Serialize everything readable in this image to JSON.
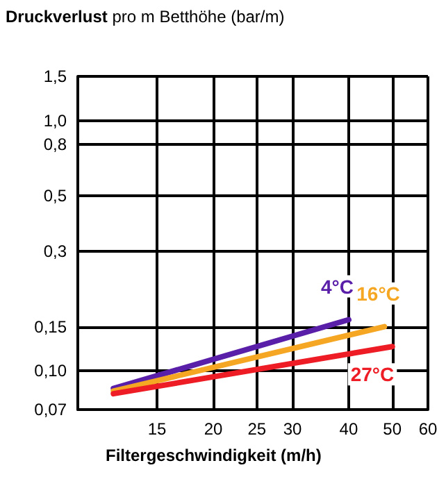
{
  "chart_data": {
    "type": "line",
    "ylabel": "Druckverlust pro m Betthöhe (bar/m)",
    "xlabel": "Filtergeschwindigkeit (m/h)",
    "log": "xy",
    "grid": true,
    "legend": false,
    "marker": "none",
    "line_style": "solid",
    "xlim": [
      10,
      60
    ],
    "xticks": [
      15,
      20,
      25,
      30,
      40,
      50,
      60
    ],
    "ylim": [
      0.07,
      1.5
    ],
    "yticks": [
      {
        "value": 0.07,
        "label": "0,07"
      },
      {
        "value": 0.1,
        "label": "0,10"
      },
      {
        "value": 0.15,
        "label": "0,15"
      },
      {
        "value": 0.3,
        "label": "0,3"
      },
      {
        "value": 0.5,
        "label": "0,5"
      },
      {
        "value": 0.8,
        "label": "0,8"
      },
      {
        "value": 1.0,
        "label": "1,0"
      },
      {
        "value": 1.5,
        "label": "1,5"
      }
    ],
    "series": [
      {
        "name": "4°C",
        "color": "#5a1fa8",
        "x": [
          12,
          40
        ],
        "values": [
          0.085,
          0.16
        ]
      },
      {
        "name": "16°C",
        "color": "#f5a623",
        "x": [
          12,
          48
        ],
        "values": [
          0.083,
          0.15
        ]
      },
      {
        "name": "27°C",
        "color": "#ee1c24",
        "x": [
          12,
          50
        ],
        "values": [
          0.081,
          0.125
        ]
      }
    ]
  }
}
